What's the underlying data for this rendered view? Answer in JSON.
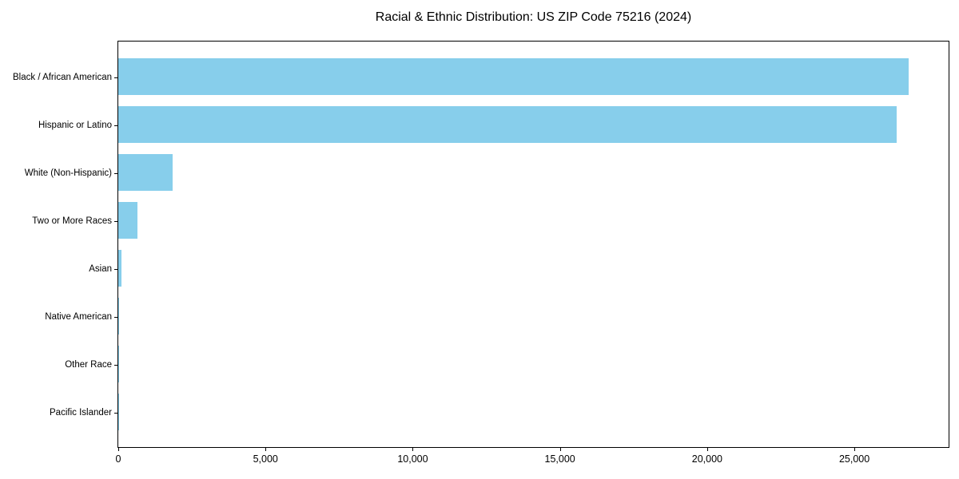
{
  "chart_data": {
    "type": "bar",
    "orientation": "horizontal",
    "title": "Racial & Ethnic Distribution: US ZIP Code 75216 (2024)",
    "categories": [
      "Black / African American",
      "Hispanic or Latino",
      "White (Non-Hispanic)",
      "Two or More Races",
      "Asian",
      "Native American",
      "Other Race",
      "Pacific Islander"
    ],
    "values": [
      26850,
      26430,
      1850,
      650,
      110,
      25,
      20,
      10
    ],
    "xlabel": "",
    "ylabel": "",
    "xlim": [
      0,
      28200
    ],
    "xticks": {
      "values": [
        0,
        5000,
        10000,
        15000,
        20000,
        25000
      ],
      "labels": [
        "0",
        "5,000",
        "10,000",
        "15,000",
        "20,000",
        "25,000"
      ]
    },
    "grid": false,
    "legend_position": "none",
    "colors": {
      "bar": "#87CEEB",
      "axis": "#000000",
      "text": "#000000",
      "background": "#FFFFFF"
    }
  }
}
